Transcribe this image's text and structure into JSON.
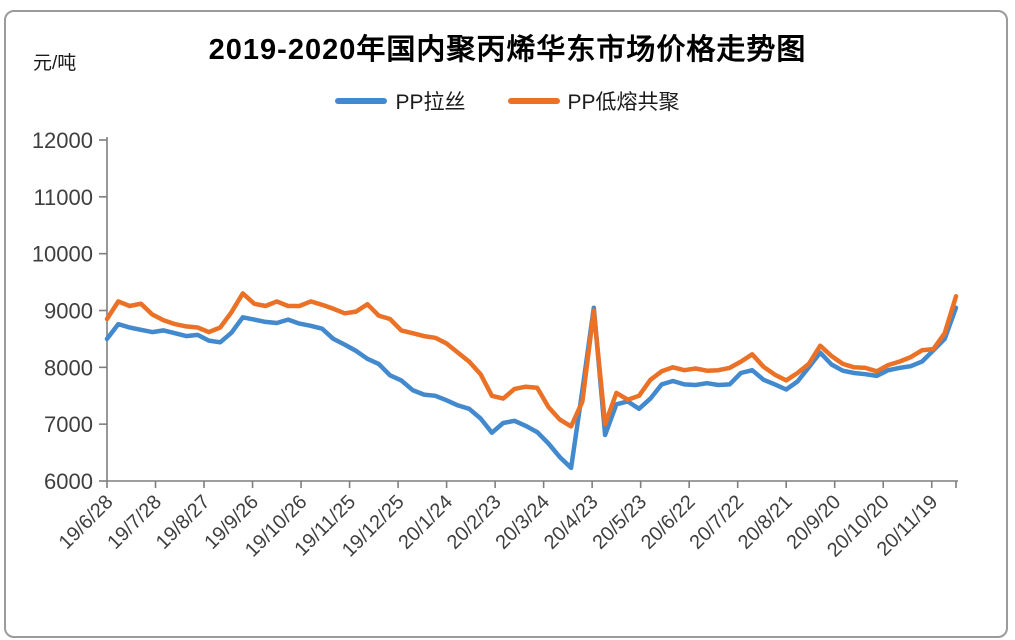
{
  "title": "2019-2020年国内聚丙烯华东市场价格走势图",
  "y_axis": {
    "unit_label": "元/吨"
  },
  "legend": [
    {
      "name": "PP拉丝",
      "color": "#4289CE"
    },
    {
      "name": "PP低熔共聚",
      "color": "#EA7125"
    }
  ],
  "chart_data": {
    "type": "line",
    "title": "2019-2020年国内聚丙烯华东市场价格走势图",
    "ylabel": "元/吨",
    "ylim": [
      6000,
      12000
    ],
    "y_ticks": [
      6000,
      7000,
      8000,
      9000,
      10000,
      11000,
      12000
    ],
    "grid": false,
    "legend_position": "top",
    "x_tick_labels": [
      "19/6/28",
      "19/7/28",
      "19/8/27",
      "19/9/26",
      "19/10/26",
      "19/11/25",
      "19/12/25",
      "20/1/24",
      "20/2/23",
      "20/3/24",
      "20/4/23",
      "20/5/23",
      "20/6/22",
      "20/7/22",
      "20/8/21",
      "20/9/20",
      "20/10/20",
      "20/11/19"
    ],
    "x_tick_interval_days": 30,
    "sample_interval_days": 7,
    "total_days": 525,
    "axis_color": "#7f7f7f",
    "tick_label_color": "#3f3f3f",
    "series": [
      {
        "name": "PP拉丝",
        "color": "#4289CE",
        "values": [
          8500,
          8760,
          8700,
          8660,
          8620,
          8650,
          8600,
          8550,
          8570,
          8470,
          8440,
          8610,
          8880,
          8840,
          8800,
          8780,
          8840,
          8770,
          8730,
          8680,
          8500,
          8400,
          8290,
          8150,
          8060,
          7860,
          7770,
          7600,
          7520,
          7500,
          7420,
          7330,
          7270,
          7100,
          6850,
          7020,
          7060,
          6970,
          6860,
          6660,
          6420,
          6230,
          7600,
          9050,
          6810,
          7350,
          7400,
          7270,
          7450,
          7700,
          7760,
          7700,
          7690,
          7720,
          7690,
          7700,
          7900,
          7950,
          7780,
          7700,
          7610,
          7750,
          8000,
          8260,
          8050,
          7940,
          7900,
          7880,
          7850,
          7950,
          7990,
          8020,
          8100,
          8300,
          8500,
          9050
        ]
      },
      {
        "name": "PP低熔共聚",
        "color": "#EA7125",
        "values": [
          8850,
          9160,
          9080,
          9120,
          8930,
          8830,
          8760,
          8720,
          8700,
          8620,
          8700,
          8970,
          9300,
          9120,
          9080,
          9160,
          9080,
          9080,
          9160,
          9100,
          9030,
          8950,
          8980,
          9110,
          8910,
          8850,
          8650,
          8600,
          8550,
          8520,
          8420,
          8260,
          8100,
          7880,
          7500,
          7450,
          7620,
          7660,
          7640,
          7300,
          7080,
          6960,
          7400,
          9000,
          7000,
          7550,
          7430,
          7500,
          7780,
          7930,
          8000,
          7950,
          7980,
          7940,
          7950,
          7990,
          8100,
          8230,
          8010,
          7870,
          7770,
          7900,
          8060,
          8380,
          8200,
          8060,
          8000,
          7990,
          7930,
          8040,
          8100,
          8180,
          8300,
          8320,
          8600,
          9250
        ]
      }
    ]
  }
}
